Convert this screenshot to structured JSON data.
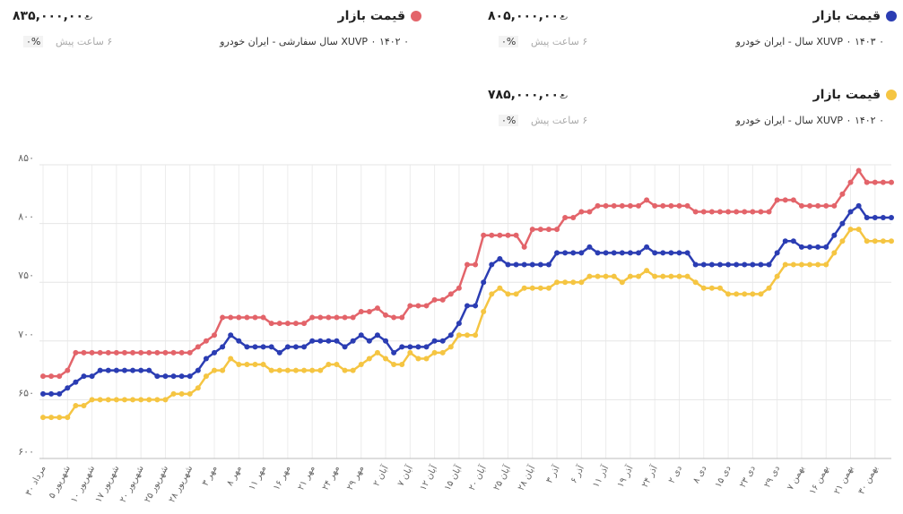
{
  "cards": [
    {
      "title": "قیمت بازار",
      "price": "۸۰۵,۰۰۰,۰۰۰",
      "currency": "ت",
      "change": "۰%",
      "time": "۶ ساعت پیش"
    },
    {
      "title": "قیمت بازار",
      "price": "۸۳۵,۰۰۰,۰۰۰",
      "currency": "ت",
      "change": "۰%",
      "time": "۶ ساعت پیش"
    },
    {
      "title": "قیمت بازار",
      "price": "۷۸۵,۰۰۰,۰۰۰",
      "currency": "ت",
      "change": "۰%",
      "time": "۶ ساعت پیش"
    }
  ],
  "chart_data": {
    "type": "line",
    "categories": [
      "۳۰ مرداد",
      null,
      null,
      "۵ شهریور",
      null,
      null,
      "۱۰ شهریور",
      null,
      null,
      "۱۷ شهریور",
      null,
      null,
      "۲۰ شهریور",
      null,
      null,
      "۲۵ شهریور",
      null,
      null,
      "۲۸ شهریور",
      null,
      null,
      "۳ مهر",
      null,
      null,
      "۸ مهر",
      null,
      null,
      "۱۱ مهر",
      null,
      null,
      "۱۶ مهر",
      null,
      null,
      "۲۱ مهر",
      null,
      null,
      "۲۴ مهر",
      null,
      null,
      "۲۹ مهر",
      null,
      null,
      "۲ آبان",
      null,
      null,
      "۷ آبان",
      null,
      null,
      "۱۲ آبان",
      null,
      null,
      "۱۵ آبان",
      null,
      null,
      "۲۰ آبان",
      null,
      null,
      "۲۵ آبان",
      null,
      null,
      "۲۸ آبان",
      null,
      null,
      "۳ آذر",
      null,
      null,
      "۶ آذر",
      null,
      null,
      "۱۱ آذر",
      null,
      null,
      "۱۹ آذر",
      null,
      null,
      "۲۴ آذر",
      null,
      null,
      "۲ دی",
      null,
      null,
      "۸ دی",
      null,
      null,
      "۱۵ دی",
      null,
      null,
      "۲۳ دی",
      null,
      null,
      "۲۹ دی",
      null,
      null,
      "۷ بهمن",
      null,
      null,
      "۱۶ بهمن",
      null,
      null,
      "۲۱ بهمن",
      null,
      null,
      "۳۰ بهمن",
      null,
      null
    ],
    "series": [
      {
        "name": "XUVP ۰ ۱۴۰۳ ۰ سال - ایران خودرو",
        "color": "#2b3db3",
        "values": [
          655,
          655,
          655,
          660,
          665,
          670,
          670,
          675,
          675,
          675,
          675,
          675,
          675,
          675,
          670,
          670,
          670,
          670,
          670,
          675,
          685,
          690,
          695,
          705,
          700,
          695,
          695,
          695,
          695,
          690,
          695,
          695,
          695,
          700,
          700,
          700,
          700,
          695,
          700,
          705,
          700,
          705,
          700,
          690,
          695,
          695,
          695,
          695,
          700,
          700,
          705,
          715,
          730,
          730,
          750,
          765,
          770,
          765,
          765,
          765,
          765,
          765,
          765,
          775,
          775,
          775,
          775,
          780,
          775,
          775,
          775,
          775,
          775,
          775,
          780,
          775,
          775,
          775,
          775,
          775,
          765,
          765,
          765,
          765,
          765,
          765,
          765,
          765,
          765,
          765,
          775,
          785,
          785,
          780,
          780,
          780,
          780,
          790,
          800,
          810,
          815,
          805,
          805,
          805,
          805
        ]
      },
      {
        "name": "XUVP ۰ ۱۴۰۲ ۰ سال سفارشی - ایران خودرو",
        "color": "#e3646a",
        "values": [
          670,
          670,
          670,
          675,
          690,
          690,
          690,
          690,
          690,
          690,
          690,
          690,
          690,
          690,
          690,
          690,
          690,
          690,
          690,
          695,
          700,
          705,
          720,
          720,
          720,
          720,
          720,
          720,
          715,
          715,
          715,
          715,
          715,
          720,
          720,
          720,
          720,
          720,
          720,
          725,
          725,
          728,
          722,
          720,
          720,
          730,
          730,
          730,
          735,
          735,
          740,
          745,
          765,
          765,
          790,
          790,
          790,
          790,
          790,
          780,
          795,
          795,
          795,
          795,
          805,
          805,
          810,
          810,
          815,
          815,
          815,
          815,
          815,
          815,
          820,
          815,
          815,
          815,
          815,
          815,
          810,
          810,
          810,
          810,
          810,
          810,
          810,
          810,
          810,
          810,
          820,
          820,
          820,
          815,
          815,
          815,
          815,
          815,
          825,
          835,
          845,
          835,
          835,
          835,
          835
        ]
      },
      {
        "name": "XUVP ۰ ۱۴۰۲ ۰ سال - ایران خودرو",
        "color": "#f5c542",
        "values": [
          635,
          635,
          635,
          635,
          645,
          645,
          650,
          650,
          650,
          650,
          650,
          650,
          650,
          650,
          650,
          650,
          655,
          655,
          655,
          660,
          670,
          675,
          675,
          685,
          680,
          680,
          680,
          680,
          675,
          675,
          675,
          675,
          675,
          675,
          675,
          680,
          680,
          675,
          675,
          680,
          685,
          690,
          685,
          680,
          680,
          690,
          685,
          685,
          690,
          690,
          695,
          705,
          705,
          705,
          725,
          740,
          745,
          740,
          740,
          745,
          745,
          745,
          745,
          750,
          750,
          750,
          750,
          755,
          755,
          755,
          755,
          750,
          755,
          755,
          760,
          755,
          755,
          755,
          755,
          755,
          750,
          745,
          745,
          745,
          740,
          740,
          740,
          740,
          740,
          745,
          755,
          765,
          765,
          765,
          765,
          765,
          765,
          775,
          785,
          795,
          795,
          785,
          785,
          785,
          785
        ]
      }
    ],
    "ylim": [
      600,
      850
    ],
    "yticks": [
      {
        "value": 600,
        "label": "۶۰۰"
      },
      {
        "value": 650,
        "label": "۶۵۰"
      },
      {
        "value": 700,
        "label": "۷۰۰"
      },
      {
        "value": 750,
        "label": "۷۵۰"
      },
      {
        "value": 800,
        "label": "۸۰۰"
      },
      {
        "value": 850,
        "label": "۸۵۰"
      }
    ],
    "grid": true
  }
}
